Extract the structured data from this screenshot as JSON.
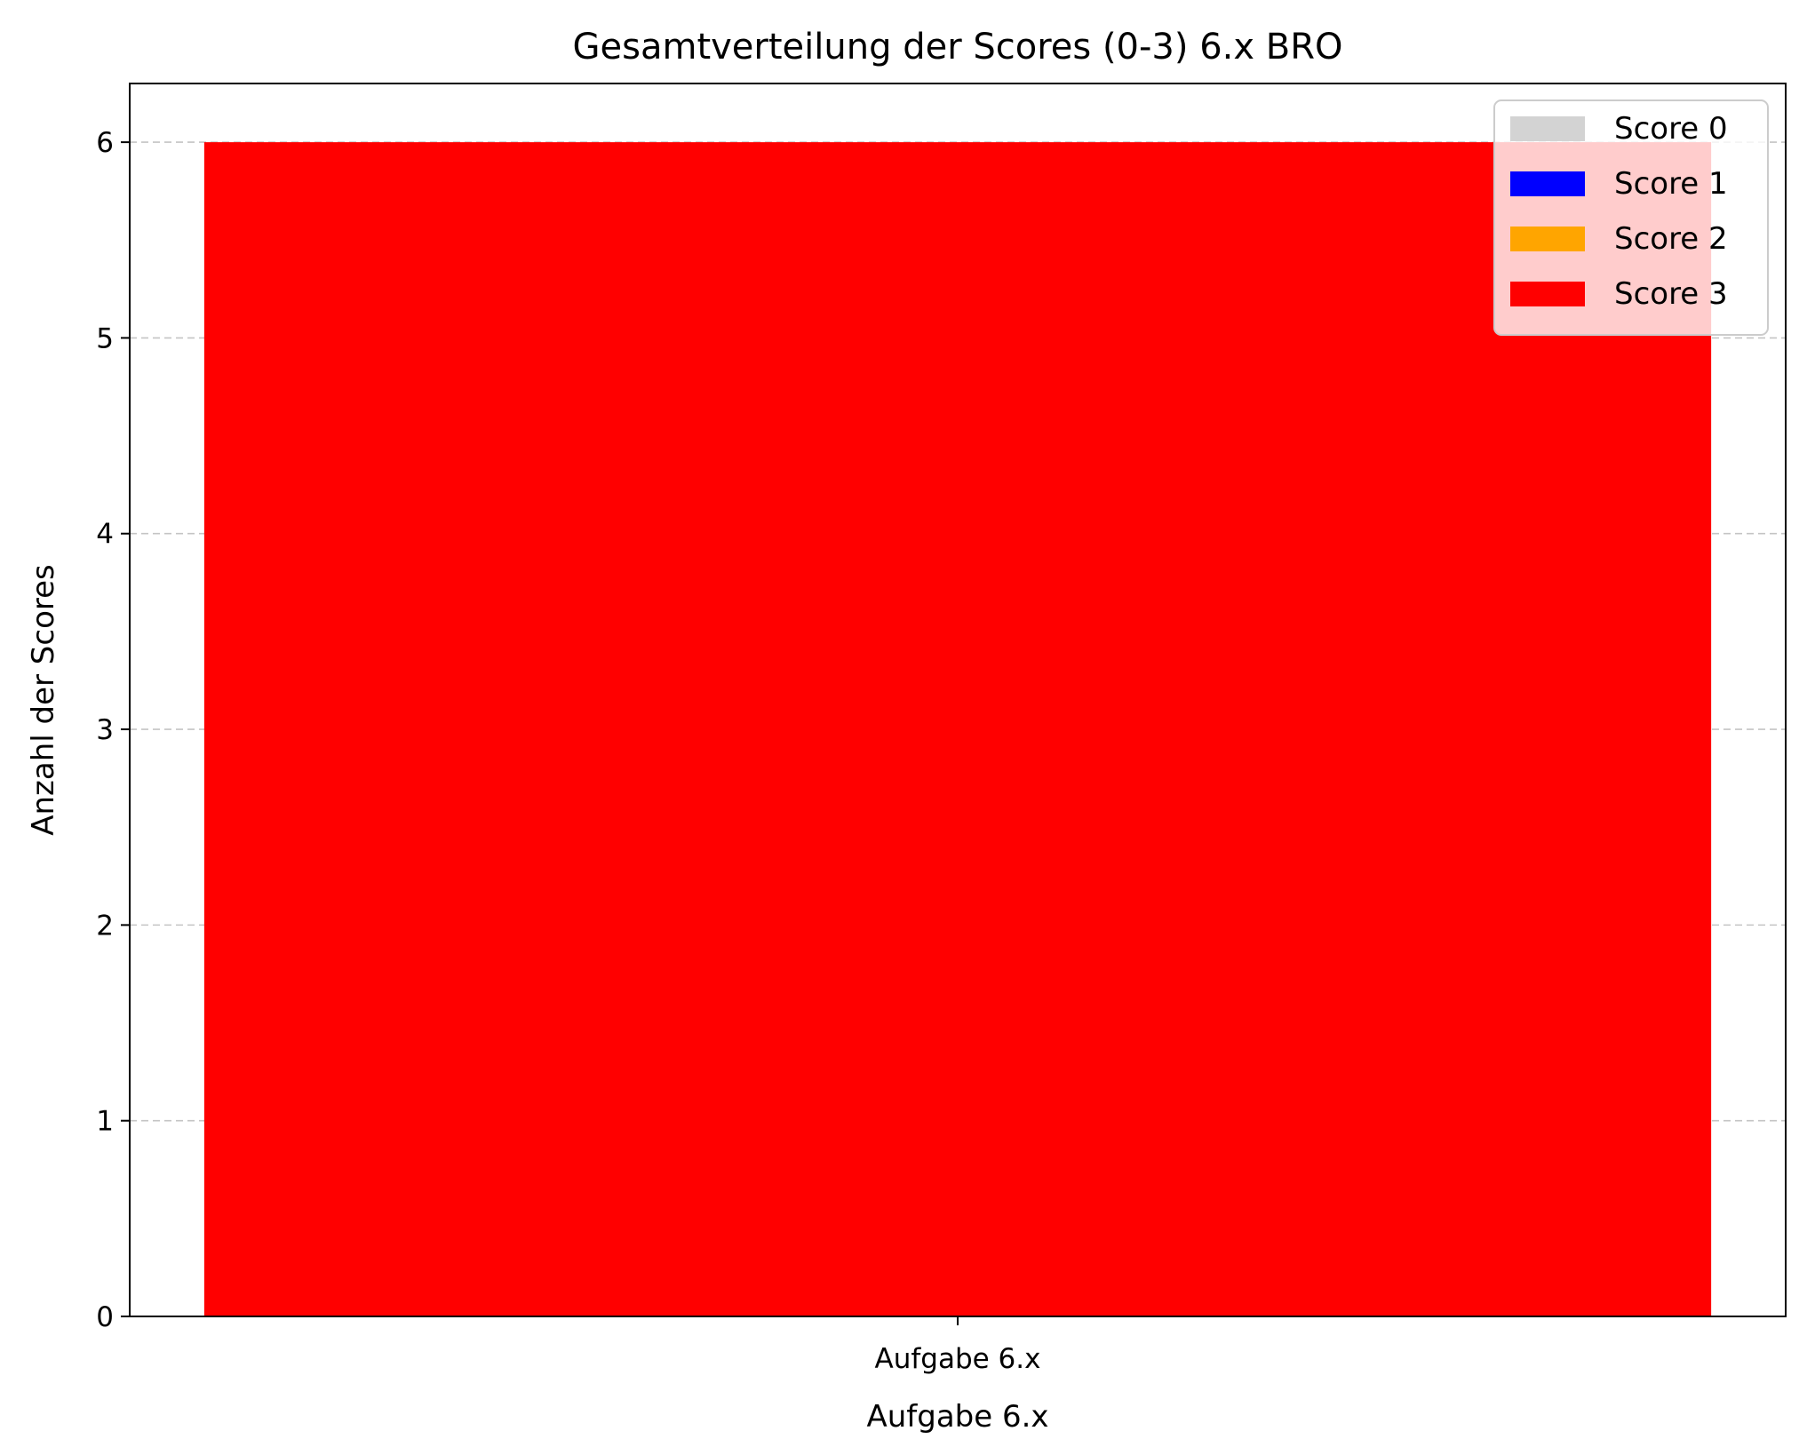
{
  "chart_data": {
    "type": "bar",
    "stacked": true,
    "title": "Gesamtverteilung der Scores (0-3) 6.x BRO",
    "xlabel": "Aufgabe 6.x",
    "ylabel": "Anzahl der Scores",
    "categories": [
      "Aufgabe 6.x"
    ],
    "ylim": [
      0,
      6.3
    ],
    "yticks": [
      "0",
      "1",
      "2",
      "3",
      "4",
      "5",
      "6"
    ],
    "grid": "y-dashed",
    "legend_position": "top-right",
    "series": [
      {
        "name": "Score 0",
        "color": "#d3d3d3",
        "values": [
          0
        ]
      },
      {
        "name": "Score 1",
        "color": "#0000ff",
        "values": [
          0
        ]
      },
      {
        "name": "Score 2",
        "color": "#ffa500",
        "values": [
          0
        ]
      },
      {
        "name": "Score 3",
        "color": "#ff0000",
        "values": [
          6
        ]
      }
    ]
  }
}
